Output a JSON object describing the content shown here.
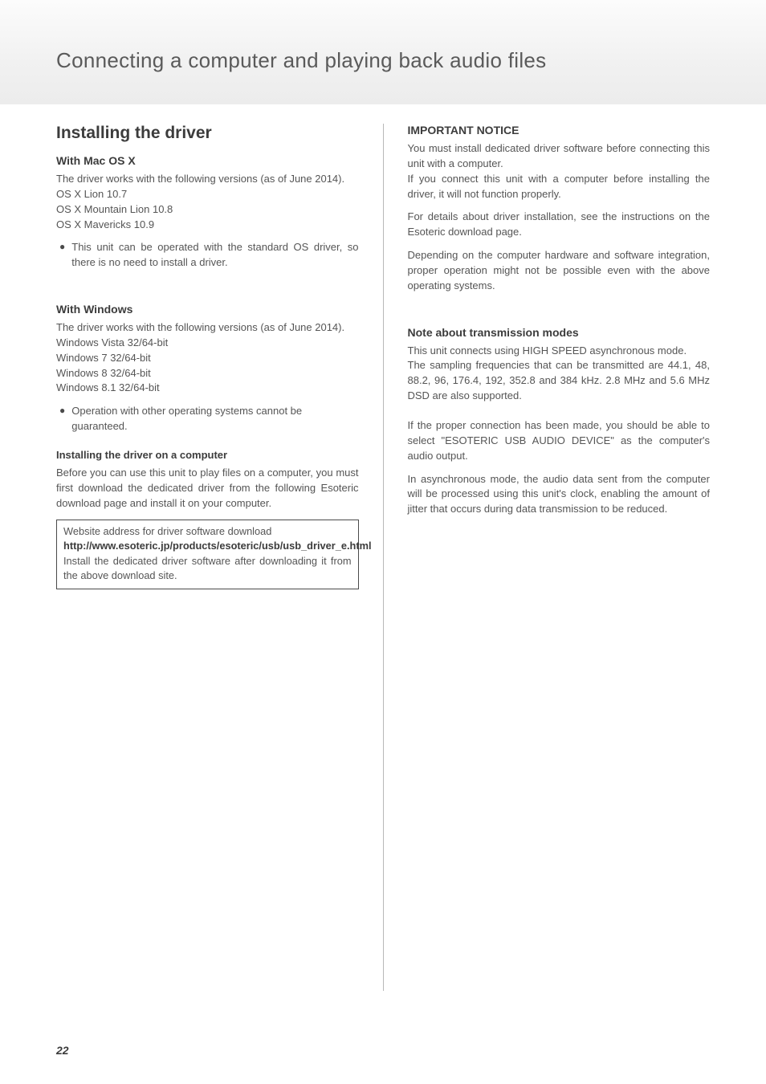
{
  "header": {
    "title": "Connecting a computer and playing back audio files"
  },
  "left": {
    "h2": "Installing the driver",
    "mac": {
      "heading": "With Mac OS X",
      "intro": "The driver works with the following versions (as of June 2014).",
      "v1": "OS X Lion 10.7",
      "v2": "OS X Mountain Lion 10.8",
      "v3": "OS X Mavericks 10.9",
      "bullet": "This unit can be operated with the standard OS driver, so there is no need to install a driver."
    },
    "win": {
      "heading": "With Windows",
      "intro": "The driver works with the following versions (as of June 2014).",
      "v1": "Windows Vista 32/64-bit",
      "v2": "Windows 7 32/64-bit",
      "v3": "Windows 8 32/64-bit",
      "v4": "Windows 8.1 32/64-bit",
      "bullet": "Operation with other operating systems cannot be guaranteed."
    },
    "install": {
      "heading": "Installing the driver on a computer",
      "para": "Before you can use this unit to play files on a computer, you must first download the dedicated driver from the following Esoteric download page and install it on your computer."
    },
    "box": {
      "line1": "Website address for driver software download",
      "url": "http://www.esoteric.jp/products/esoteric/usb/usb_driver_e.html",
      "line3": "Install the dedicated driver software after downloading it from the above download site."
    }
  },
  "right": {
    "notice": {
      "heading": "IMPORTANT NOTICE",
      "p1": "You must install dedicated driver software before connecting this unit with a computer.",
      "p2": "If you connect this unit with a computer before installing the driver, it will not function properly.",
      "p3": "For details about driver installation, see the instructions on the Esoteric download page.",
      "p4": "Depending on the computer hardware and software integration, proper operation might not be possible even with the above operating systems."
    },
    "modes": {
      "heading": "Note about transmission modes",
      "p1": "This unit connects using HIGH SPEED asynchronous mode.",
      "p2": "The sampling frequencies that can be transmitted are 44.1, 48, 88.2, 96, 176.4, 192, 352.8 and 384 kHz. 2.8 MHz and 5.6 MHz DSD are also supported.",
      "p3": "If the proper connection has been made, you should be able to select \"ESOTERIC USB AUDIO DEVICE\" as the computer's audio output.",
      "p4": "In asynchronous mode, the audio data sent from the computer will be processed using this unit's clock, enabling the amount of jitter that occurs during data transmission to be reduced."
    }
  },
  "page_number": "22"
}
